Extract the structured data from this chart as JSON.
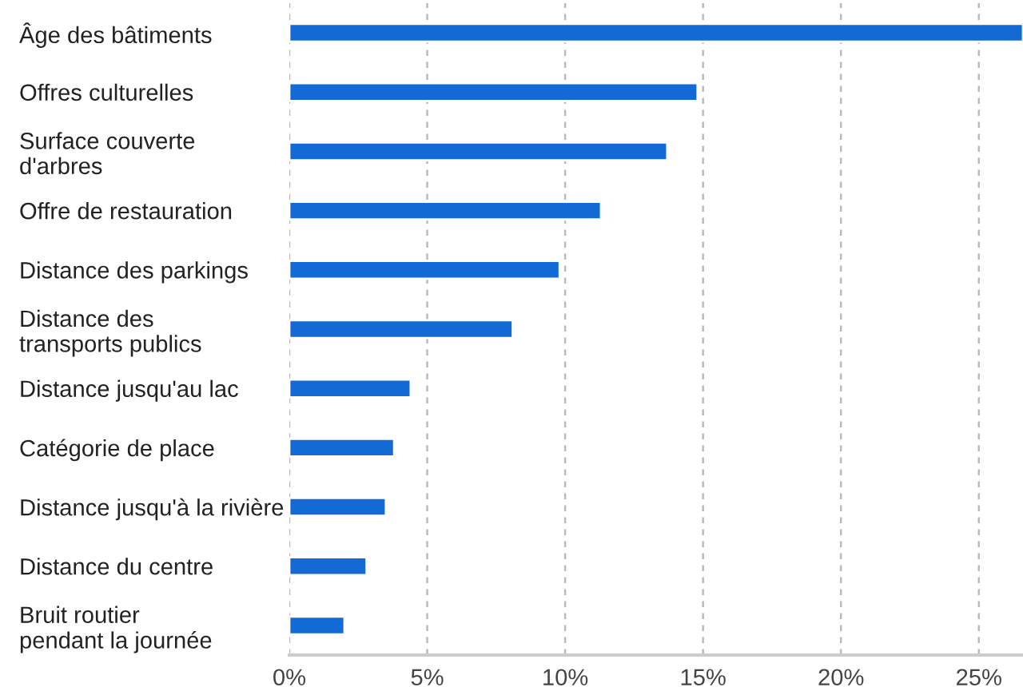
{
  "chart_data": {
    "type": "bar",
    "orientation": "horizontal",
    "categories": [
      "Âge des bâtiments",
      "Offres culturelles",
      "Surface couverte\nd'arbres",
      "Offre de restauration",
      "Distance des parkings",
      "Distance des\ntransports publics",
      "Distance jusqu'au lac",
      "Catégorie de place",
      "Distance jusqu'à la rivière",
      "Distance du centre",
      "Bruit routier\npendant la journée"
    ],
    "values": [
      26.6,
      14.8,
      13.7,
      11.3,
      9.8,
      8.1,
      4.4,
      3.8,
      3.5,
      2.8,
      2.0
    ],
    "color": "#136ad5",
    "xlim": [
      0,
      26.6
    ],
    "xticks": [
      {
        "value": 0,
        "label": "0%"
      },
      {
        "value": 5,
        "label": "5%"
      },
      {
        "value": 10,
        "label": "10%"
      },
      {
        "value": 15,
        "label": "15%"
      },
      {
        "value": 20,
        "label": "20%"
      },
      {
        "value": 25,
        "label": "25%"
      }
    ],
    "grid": "x"
  }
}
